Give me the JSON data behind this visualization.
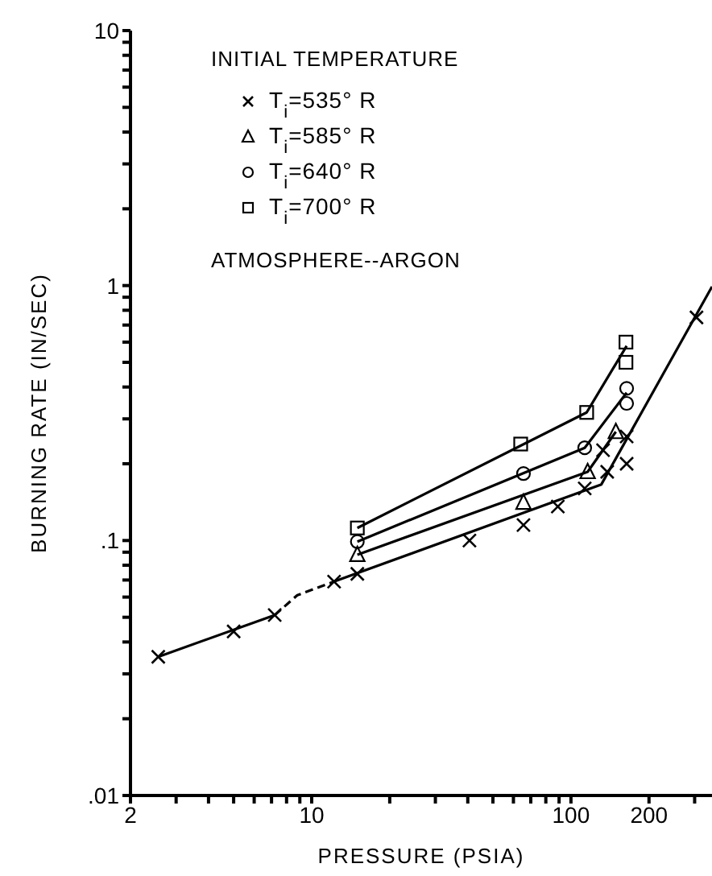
{
  "chart_data": {
    "type": "scatter",
    "xlabel": "PRESSURE (PSIA)",
    "ylabel": "BURNING RATE (IN/SEC)",
    "legend_title": "INITIAL TEMPERATURE",
    "legend": "top left",
    "log": "xy",
    "grid": false,
    "annotations": [
      "ATMOSPHERE--ARGON"
    ],
    "xlim": [
      2,
      350
    ],
    "ylim": [
      0.01,
      10
    ],
    "xticks": [
      2,
      {
        "value": 3,
        "label": null
      },
      {
        "value": 4,
        "label": null
      },
      {
        "value": 5,
        "label": null
      },
      {
        "value": 6,
        "label": null
      },
      {
        "value": 7,
        "label": null
      },
      {
        "value": 8,
        "label": null
      },
      {
        "value": 9,
        "label": null
      },
      10,
      {
        "value": 20,
        "label": null
      },
      {
        "value": 30,
        "label": null
      },
      {
        "value": 40,
        "label": null
      },
      {
        "value": 50,
        "label": null
      },
      {
        "value": 60,
        "label": null
      },
      {
        "value": 70,
        "label": null
      },
      {
        "value": 80,
        "label": null
      },
      {
        "value": 90,
        "label": null
      },
      100,
      200,
      {
        "value": 300,
        "label": null
      }
    ],
    "yticks": [
      {
        "value": 0.01,
        "label": ".01"
      },
      {
        "value": 0.02,
        "label": null
      },
      {
        "value": 0.03,
        "label": null
      },
      {
        "value": 0.04,
        "label": null
      },
      {
        "value": 0.05,
        "label": null
      },
      {
        "value": 0.06,
        "label": null
      },
      {
        "value": 0.07,
        "label": null
      },
      {
        "value": 0.08,
        "label": null
      },
      {
        "value": 0.09,
        "label": null
      },
      {
        "value": 0.1,
        "label": ".1"
      },
      {
        "value": 0.2,
        "label": null
      },
      {
        "value": 0.3,
        "label": null
      },
      {
        "value": 0.4,
        "label": null
      },
      {
        "value": 0.5,
        "label": null
      },
      {
        "value": 0.6,
        "label": null
      },
      {
        "value": 0.7,
        "label": null
      },
      {
        "value": 0.8,
        "label": null
      },
      {
        "value": 0.9,
        "label": null
      },
      1,
      {
        "value": 2,
        "label": null
      },
      {
        "value": 3,
        "label": null
      },
      {
        "value": 4,
        "label": null
      },
      {
        "value": 5,
        "label": null
      },
      {
        "value": 6,
        "label": null
      },
      {
        "value": 7,
        "label": null
      },
      {
        "value": 8,
        "label": null
      },
      {
        "value": 9,
        "label": null
      },
      10
    ],
    "series": [
      {
        "name": "T$_{i}$=535° R",
        "marker": "cross",
        "color": "#000000",
        "x": [
          2.56,
          5,
          7.2,
          12.2,
          15,
          40.6,
          65.6,
          89,
          113,
          133,
          138,
          164,
          164,
          305
        ],
        "values": [
          0.035,
          0.044,
          0.051,
          0.069,
          0.074,
          0.1,
          0.115,
          0.136,
          0.16,
          0.226,
          0.186,
          0.2,
          0.256,
          0.75
        ]
      },
      {
        "name": "T$_{i}$=585° R",
        "marker": "triangle",
        "color": "#000000",
        "x": [
          15,
          65.6,
          116,
          149
        ],
        "values": [
          0.088,
          0.141,
          0.186,
          0.267
        ]
      },
      {
        "name": "T$_{i}$=640° R",
        "marker": "circle",
        "color": "#000000",
        "x": [
          15,
          65.6,
          113,
          164,
          164
        ],
        "values": [
          0.099,
          0.183,
          0.231,
          0.395,
          0.345
        ]
      },
      {
        "name": "T$_{i}$=700° R",
        "marker": "square",
        "color": "#000000",
        "x": [
          15,
          64,
          115,
          163,
          163
        ],
        "values": [
          0.112,
          0.239,
          0.318,
          0.6,
          0.5
        ]
      },
      {
        "type": "line",
        "color": "#000000",
        "line_style": "solid",
        "marker": "none",
        "x": [
          2.56,
          7.2
        ],
        "values": [
          0.035,
          0.051
        ]
      },
      {
        "type": "line",
        "color": "#000000",
        "line_style": "dashed",
        "marker": "none",
        "x": [
          7.2,
          8.8,
          12.2
        ],
        "values": [
          0.051,
          0.061,
          0.069
        ]
      },
      {
        "type": "line",
        "color": "#000000",
        "line_style": "solid",
        "marker": "none",
        "x": [
          12.2,
          131,
          350
        ],
        "values": [
          0.069,
          0.166,
          0.99
        ]
      },
      {
        "type": "line",
        "color": "#000000",
        "line_style": "solid",
        "marker": "none",
        "x": [
          15,
          116,
          149
        ],
        "values": [
          0.088,
          0.186,
          0.267
        ]
      },
      {
        "type": "line",
        "color": "#000000",
        "line_style": "solid",
        "marker": "none",
        "x": [
          15,
          113,
          164
        ],
        "values": [
          0.099,
          0.231,
          0.38
        ]
      },
      {
        "type": "line",
        "color": "#000000",
        "line_style": "solid",
        "marker": "none",
        "x": [
          15,
          115,
          164
        ],
        "values": [
          0.112,
          0.318,
          0.58
        ]
      }
    ]
  }
}
